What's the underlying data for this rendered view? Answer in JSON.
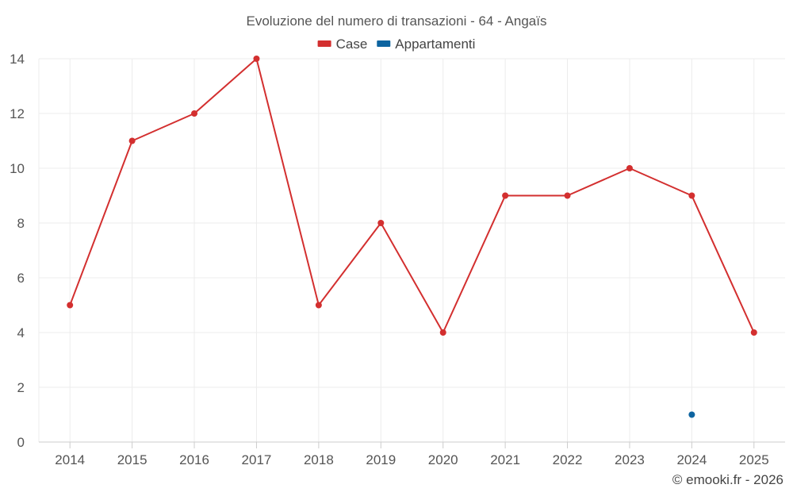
{
  "chart_data": {
    "type": "line",
    "title": "Evoluzione del numero di transazioni - 64 - Angaïs",
    "xlabel": "",
    "ylabel": "",
    "categories": [
      "2014",
      "2015",
      "2016",
      "2017",
      "2018",
      "2019",
      "2020",
      "2021",
      "2022",
      "2023",
      "2024",
      "2025"
    ],
    "ylim": [
      0,
      14
    ],
    "yticks": [
      0,
      2,
      4,
      6,
      8,
      10,
      12,
      14
    ],
    "grid": true,
    "legend_position": "top-center",
    "series": [
      {
        "name": "Case",
        "color": "#d32f2f",
        "values": [
          5,
          11,
          12,
          14,
          5,
          8,
          4,
          9,
          9,
          10,
          9,
          4
        ]
      },
      {
        "name": "Appartamenti",
        "color": "#0d64a0",
        "values": [
          null,
          null,
          null,
          null,
          null,
          null,
          null,
          null,
          null,
          null,
          1,
          null
        ]
      }
    ]
  },
  "credit": "© emooki.fr - 2026"
}
